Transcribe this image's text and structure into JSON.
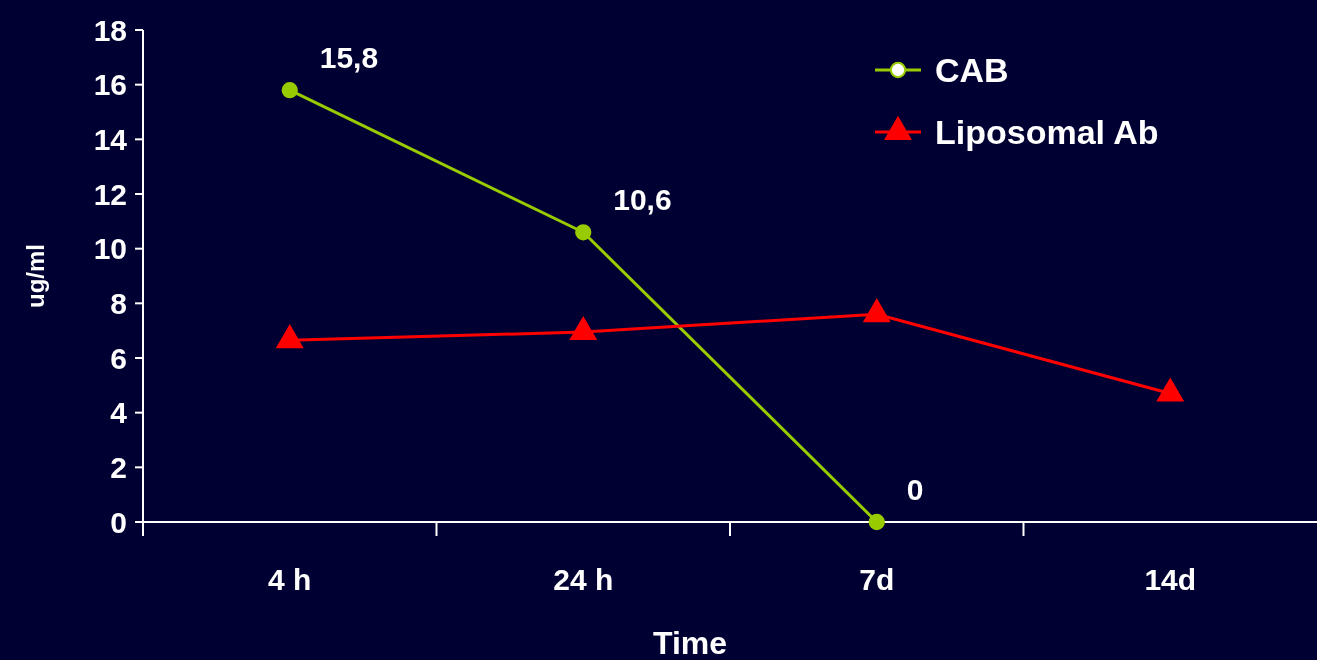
{
  "chart_data": {
    "type": "line",
    "xlabel": "Time",
    "ylabel": "ug/ml",
    "categories": [
      "4 h",
      "24 h",
      "7d",
      "14d"
    ],
    "series": [
      {
        "name": "CAB",
        "color": "#99cc00",
        "marker": "circle",
        "values": [
          15.8,
          10.6,
          0,
          null
        ],
        "value_labels": [
          "15,8",
          "10,6",
          "0",
          null
        ]
      },
      {
        "name": "Liposomal Ab",
        "color": "#ff0000",
        "marker": "triangle",
        "values": [
          6.65,
          6.95,
          7.6,
          4.7
        ]
      }
    ],
    "ylim": [
      0,
      18
    ],
    "yticks": [
      0,
      2,
      4,
      6,
      8,
      10,
      12,
      14,
      16,
      18
    ],
    "grid": false,
    "legend": "top right",
    "line_style": "solid"
  }
}
